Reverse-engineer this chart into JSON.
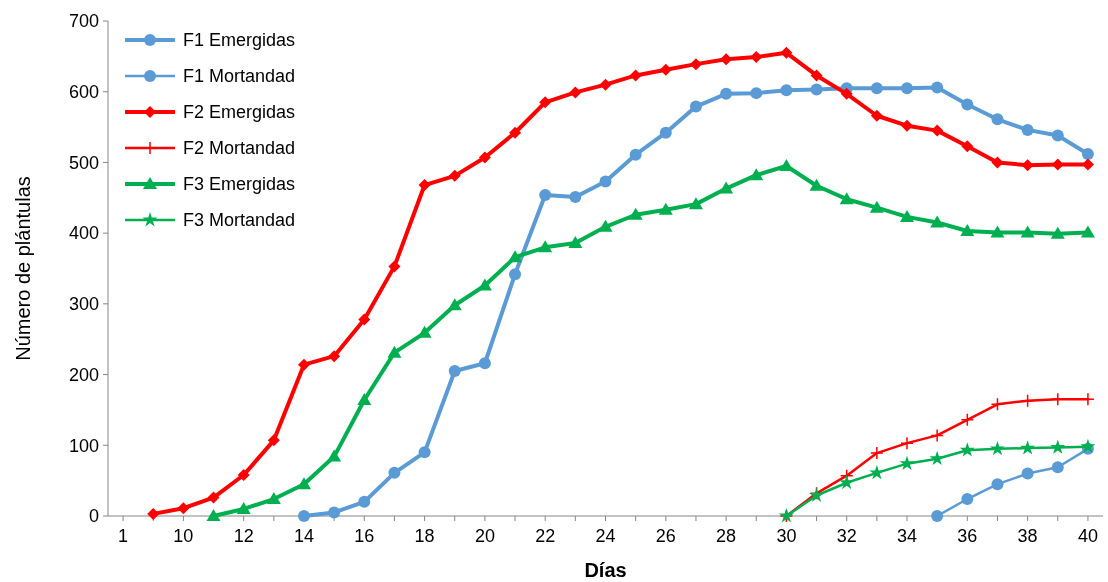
{
  "chart_data": {
    "type": "line",
    "xlabel": "Días",
    "ylabel": "Número de plántulas",
    "categories": [
      "1",
      null,
      "10",
      null,
      "12",
      null,
      "14",
      null,
      "16",
      null,
      "18",
      null,
      "20",
      null,
      "22",
      null,
      "24",
      null,
      "26",
      null,
      "28",
      null,
      "30",
      null,
      "32",
      null,
      "34",
      null,
      "36",
      null,
      "38",
      null,
      "40"
    ],
    "series": [
      {
        "name": "F1 Emergidas",
        "color": "#5b9bd5",
        "marker": "circle",
        "values": [
          null,
          null,
          null,
          null,
          null,
          null,
          0,
          5,
          20,
          61,
          90,
          205,
          216,
          342,
          454,
          451,
          473,
          511,
          542,
          579,
          597,
          598,
          602,
          603,
          605,
          605,
          605,
          606,
          582,
          561,
          546,
          538,
          512
        ]
      },
      {
        "name": "F1 Mortandad",
        "color": "#5b9bd5",
        "marker": "circle",
        "values": [
          null,
          null,
          null,
          null,
          null,
          null,
          null,
          null,
          null,
          null,
          null,
          null,
          null,
          null,
          null,
          null,
          null,
          null,
          null,
          null,
          null,
          null,
          null,
          null,
          null,
          null,
          null,
          0,
          24,
          45,
          60,
          69,
          95
        ]
      },
      {
        "name": "F2 Emergidas",
        "color": "#ff0000",
        "marker": "diamond",
        "values": [
          null,
          3,
          11,
          26,
          58,
          107,
          214,
          226,
          278,
          353,
          468,
          481,
          507,
          542,
          585,
          599,
          610,
          623,
          631,
          639,
          646,
          649,
          655,
          623,
          597,
          566,
          552,
          545,
          523,
          500,
          496,
          497,
          497
        ]
      },
      {
        "name": "F2 Mortandad",
        "color": "#ff0000",
        "marker": "cross",
        "values": [
          null,
          null,
          null,
          null,
          null,
          null,
          null,
          null,
          null,
          null,
          null,
          null,
          null,
          null,
          null,
          null,
          null,
          null,
          null,
          null,
          null,
          null,
          0,
          32,
          57,
          89,
          103,
          114,
          136,
          158,
          163,
          165,
          165
        ]
      },
      {
        "name": "F3 Emergidas",
        "color": "#00b050",
        "marker": "triangle",
        "values": [
          null,
          null,
          null,
          0,
          10,
          24,
          45,
          84,
          164,
          231,
          259,
          298,
          326,
          366,
          380,
          386,
          409,
          426,
          433,
          441,
          463,
          482,
          495,
          467,
          448,
          436,
          423,
          415,
          403,
          401,
          401,
          399,
          401
        ]
      },
      {
        "name": "F3 Mortandad",
        "color": "#00b050",
        "marker": "star",
        "values": [
          null,
          null,
          null,
          null,
          null,
          null,
          null,
          null,
          null,
          null,
          null,
          null,
          null,
          null,
          null,
          null,
          null,
          null,
          null,
          null,
          null,
          null,
          0,
          29,
          47,
          61,
          74,
          81,
          93,
          95,
          96,
          97,
          98
        ]
      }
    ],
    "ylim": [
      0,
      700
    ],
    "yticks": [
      0,
      100,
      200,
      300,
      400,
      500,
      600,
      700
    ],
    "grid": false,
    "legend": "top left",
    "line_style": "solid"
  }
}
